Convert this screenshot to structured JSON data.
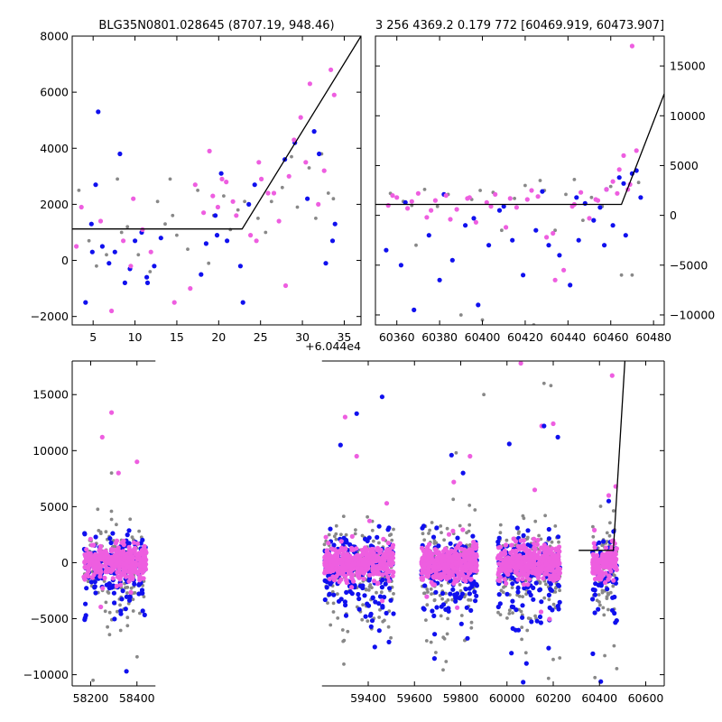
{
  "colors": {
    "blue": "#1010ee",
    "pink": "#ee5ee0",
    "gray": "#888888",
    "line": "#000000"
  },
  "chart_data": [
    {
      "type": "scatter",
      "panel": "top-left",
      "title": "BLG35N0801.028645 (8707.19, 948.46)",
      "x_offset_label": "+6.044e4",
      "xlim": [
        2.5,
        37.0
      ],
      "ylim": [
        -2300,
        8000
      ],
      "xticks": [
        5,
        10,
        15,
        20,
        25,
        30,
        35
      ],
      "yticks": [
        -2000,
        0,
        2000,
        4000,
        6000,
        8000
      ],
      "model_line": {
        "x": [
          2.5,
          22.8,
          37.0
        ],
        "y": [
          1120,
          1120,
          8000
        ]
      },
      "series": [
        {
          "color": "blue",
          "x": [
            4.1,
            4.8,
            5.3,
            5.6,
            6.1,
            6.9,
            7.6,
            8.2,
            9.4,
            10.0,
            10.8,
            11.5,
            12.3,
            13.1,
            17.9,
            18.5,
            19.6,
            20.3,
            21.0,
            22.9,
            23.6,
            24.3,
            27.9,
            30.6,
            31.4,
            32.0,
            32.8,
            33.6,
            33.9,
            4.9,
            8.8,
            11.4,
            19.8,
            22.6,
            29.1
          ],
          "y": [
            -1500,
            1300,
            2700,
            5300,
            500,
            -100,
            300,
            3800,
            -300,
            700,
            1000,
            -800,
            -200,
            800,
            -500,
            600,
            1600,
            3100,
            700,
            -1500,
            2000,
            2700,
            3600,
            2200,
            4600,
            3800,
            -100,
            700,
            1300,
            300,
            -800,
            -600,
            900,
            -200,
            4200
          ]
        },
        {
          "color": "pink",
          "x": [
            3.0,
            5.9,
            7.2,
            8.6,
            9.8,
            10.9,
            14.7,
            16.6,
            17.2,
            18.2,
            18.9,
            19.3,
            19.9,
            20.9,
            21.7,
            22.1,
            23.8,
            24.5,
            25.1,
            25.9,
            27.2,
            28.4,
            29.0,
            29.8,
            30.4,
            31.9,
            32.6,
            33.4,
            33.8,
            3.6,
            9.5,
            11.9,
            20.4,
            24.8,
            26.6,
            28.0,
            30.9
          ],
          "y": [
            500,
            1400,
            -1800,
            700,
            2200,
            1100,
            -1500,
            -1000,
            2700,
            1700,
            3900,
            2300,
            1900,
            2800,
            2100,
            1600,
            900,
            700,
            2900,
            2400,
            1400,
            3000,
            4300,
            5100,
            3500,
            2000,
            3200,
            6800,
            5900,
            1900,
            -200,
            300,
            2900,
            3500,
            2400,
            -900,
            6300
          ]
        },
        {
          "color": "gray",
          "x": [
            3.3,
            4.5,
            6.6,
            7.9,
            9.1,
            10.4,
            11.8,
            12.7,
            13.6,
            14.2,
            15.0,
            16.3,
            17.5,
            18.8,
            19.4,
            20.6,
            21.4,
            22.3,
            23.1,
            24.7,
            25.6,
            26.3,
            27.6,
            28.7,
            29.4,
            30.8,
            31.6,
            32.3,
            33.1,
            33.7,
            5.4,
            8.4,
            14.5
          ],
          "y": [
            2500,
            700,
            200,
            2900,
            1200,
            200,
            -400,
            2100,
            1300,
            2900,
            900,
            400,
            2500,
            -100,
            1600,
            2300,
            1100,
            1800,
            2100,
            1500,
            1000,
            2100,
            2600,
            3700,
            1900,
            3300,
            1500,
            3800,
            2400,
            2200,
            -200,
            1000,
            1600
          ]
        }
      ]
    },
    {
      "type": "scatter",
      "panel": "top-right",
      "title": "3 256 4369.2 0.179 772 [60469.919, 60473.907]",
      "xlim": [
        60350,
        60485
      ],
      "ylim": [
        -11000,
        18000
      ],
      "xticks": [
        60360,
        60380,
        60400,
        60420,
        60440,
        60460,
        60480
      ],
      "yticks": [
        -10000,
        -5000,
        0,
        5000,
        10000,
        15000
      ],
      "model_line": {
        "x": [
          60350,
          60465,
          60485
        ],
        "y": [
          1100,
          1100,
          12200
        ]
      },
      "series": [
        {
          "color": "blue",
          "x": [
            60355,
            60362,
            60368,
            60375,
            60380,
            60386,
            60392,
            60398,
            60403,
            60408,
            60414,
            60419,
            60425,
            60431,
            60436,
            60441,
            60445,
            60448,
            60452,
            60455,
            60458,
            60461,
            60464,
            60467,
            60470,
            60472,
            60474,
            60364,
            60382,
            60396,
            60410,
            60428,
            60444,
            60457,
            60466
          ],
          "y": [
            -3500,
            -5000,
            -9500,
            -2000,
            -6500,
            -4500,
            -1000,
            -9000,
            -3000,
            500,
            -2500,
            -6000,
            -1500,
            -3000,
            -4000,
            -7000,
            -2500,
            1200,
            -500,
            800,
            2600,
            -1000,
            3800,
            -2000,
            4200,
            4500,
            1800,
            1300,
            2100,
            -300,
            900,
            2400,
            1800,
            -3000,
            3200
          ]
        },
        {
          "color": "pink",
          "x": [
            60356,
            60360,
            60365,
            60370,
            60374,
            60378,
            60383,
            60388,
            60393,
            60397,
            60402,
            60406,
            60411,
            60416,
            60421,
            60426,
            60430,
            60434,
            60438,
            60442,
            60446,
            60450,
            60454,
            60458,
            60461,
            60464,
            60466,
            60468,
            60470,
            60472,
            60358,
            60367,
            60376,
            60385,
            60394,
            60404,
            60413,
            60423,
            60433,
            60443,
            60453,
            60463,
            60469
          ],
          "y": [
            1000,
            1800,
            700,
            2200,
            -200,
            1500,
            2000,
            600,
            1700,
            -700,
            1300,
            2100,
            -1200,
            800,
            1600,
            1900,
            -2200,
            -6500,
            -5500,
            900,
            2300,
            -300,
            1500,
            2600,
            3400,
            4600,
            6000,
            2600,
            17000,
            6500,
            2000,
            1400,
            500,
            -400,
            1800,
            900,
            1700,
            2500,
            -1800,
            1100,
            1600,
            2200,
            3100
          ]
        },
        {
          "color": "gray",
          "x": [
            60357,
            60363,
            60369,
            60373,
            60379,
            60384,
            60390,
            60395,
            60400,
            60405,
            60409,
            60415,
            60420,
            60424,
            60429,
            60434,
            60439,
            60443,
            60447,
            60451,
            60456,
            60460,
            60465,
            60470,
            60473,
            60367,
            60399,
            60427
          ],
          "y": [
            2200,
            1400,
            -3000,
            2600,
            900,
            2100,
            -10000,
            1600,
            -10500,
            2300,
            -1500,
            1700,
            3000,
            -11000,
            2500,
            -1500,
            2100,
            3600,
            -500,
            1800,
            900,
            2900,
            -6000,
            -6000,
            3300,
            1000,
            2500,
            3500
          ]
        }
      ]
    },
    {
      "type": "scatter",
      "panel": "bottom",
      "xlim": [
        58120,
        60680
      ],
      "ylim": [
        -11000,
        18000
      ],
      "xticks": [
        58200,
        58400,
        59400,
        59600,
        59800,
        60000,
        60200,
        60400,
        60600
      ],
      "yticks": [
        -10000,
        -5000,
        0,
        5000,
        10000,
        15000
      ],
      "axis_breaks": [
        [
          58480,
          59200
        ]
      ],
      "model_line": {
        "x": [
          60310,
          60460,
          60510
        ],
        "y": [
          1100,
          1100,
          18000
        ]
      },
      "seasons": [
        {
          "x_range": [
            58170,
            58440
          ],
          "n": 340
        },
        {
          "x_range": [
            59210,
            59510
          ],
          "n": 420
        },
        {
          "x_range": [
            59630,
            59870
          ],
          "n": 380
        },
        {
          "x_range": [
            59960,
            60230
          ],
          "n": 380
        },
        {
          "x_range": [
            60370,
            60475
          ],
          "n": 160
        }
      ],
      "outliers": [
        {
          "color": "pink",
          "x": [
            58290,
            58320,
            58250,
            58400,
            59300,
            59350,
            59480,
            59770,
            59840,
            60060,
            60120,
            60150,
            60200,
            60440,
            60455,
            60470
          ],
          "y": [
            13400,
            8000,
            11200,
            9000,
            13000,
            9500,
            5300,
            7200,
            9500,
            17800,
            6500,
            12200,
            12400,
            6000,
            16700,
            6800
          ]
        },
        {
          "color": "blue",
          "x": [
            59350,
            59460,
            59280,
            59760,
            59810,
            60010,
            60160,
            60220,
            60440
          ],
          "y": [
            13300,
            14800,
            10500,
            9600,
            8000,
            10600,
            12200,
            11200,
            5500
          ]
        },
        {
          "color": "gray",
          "x": [
            58290,
            59900,
            60160,
            60190,
            59780,
            58210
          ],
          "y": [
            8000,
            15000,
            16000,
            15800,
            9800,
            -10500
          ]
        }
      ]
    }
  ]
}
